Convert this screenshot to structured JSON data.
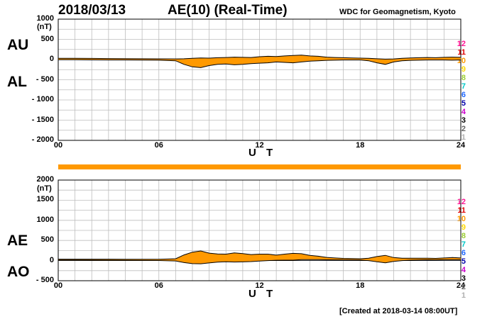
{
  "header": {
    "date": "2018/03/13",
    "title": "AE(10) (Real-Time)",
    "source": "WDC for Geomagnetism, Kyoto"
  },
  "footer": {
    "created": "[Created at 2018-03-14 08:00UT]"
  },
  "legend": {
    "items": [
      {
        "label": "12",
        "color": "#ff1493"
      },
      {
        "label": "11",
        "color": "#e00000"
      },
      {
        "label": "10",
        "color": "#ff9900"
      },
      {
        "label": "9",
        "color": "#ffd700"
      },
      {
        "label": "8",
        "color": "#9acd32"
      },
      {
        "label": "7",
        "color": "#00c8c8"
      },
      {
        "label": "6",
        "color": "#1e66ff"
      },
      {
        "label": "5",
        "color": "#0000aa"
      },
      {
        "label": "4",
        "color": "#cc00cc"
      },
      {
        "label": "3",
        "color": "#000000"
      },
      {
        "label": "2",
        "color": "#666666"
      },
      {
        "label": "1",
        "color": "#b0b0b0"
      }
    ]
  },
  "chart_data": [
    {
      "type": "area",
      "panel": "AU/AL",
      "left_labels": [
        "AU",
        "AL"
      ],
      "xlabel": "U T",
      "ylabel": "(nT)",
      "xlim": [
        0,
        24
      ],
      "xticks": [
        "00",
        "06",
        "12",
        "18",
        "24"
      ],
      "ylim": [
        -2000,
        1000
      ],
      "yticks": [
        "1000",
        "500",
        "0",
        "- 500",
        "- 1000",
        "- 1500",
        "- 2000"
      ],
      "grid": true,
      "fill_color": "#ff9900",
      "series": [
        {
          "name": "AU",
          "x": [
            0,
            1,
            2,
            3,
            4,
            5,
            6,
            7,
            7.5,
            8,
            8.5,
            9,
            9.5,
            10,
            10.5,
            11,
            11.5,
            12,
            12.5,
            13,
            13.5,
            14,
            14.5,
            15,
            15.5,
            16,
            16.5,
            17,
            17.5,
            18,
            18.5,
            19,
            19.5,
            20,
            20.5,
            21,
            21.5,
            22,
            22.5,
            23,
            23.5,
            24
          ],
          "y": [
            30,
            30,
            28,
            25,
            22,
            20,
            18,
            15,
            20,
            30,
            40,
            35,
            45,
            50,
            60,
            55,
            50,
            70,
            80,
            75,
            90,
            100,
            110,
            90,
            80,
            60,
            50,
            45,
            40,
            35,
            30,
            20,
            10,
            15,
            30,
            40,
            45,
            50,
            45,
            55,
            60,
            55
          ]
        },
        {
          "name": "AL",
          "x": [
            0,
            1,
            2,
            3,
            4,
            5,
            6,
            7,
            7.5,
            8,
            8.5,
            9,
            9.5,
            10,
            10.5,
            11,
            11.5,
            12,
            12.5,
            13,
            13.5,
            14,
            14.5,
            15,
            15.5,
            16,
            16.5,
            17,
            17.5,
            18,
            18.5,
            19,
            19.5,
            20,
            20.5,
            21,
            21.5,
            22,
            22.5,
            23,
            23.5,
            24
          ],
          "y": [
            -5,
            -5,
            -8,
            -10,
            -10,
            -12,
            -15,
            -30,
            -120,
            -180,
            -200,
            -150,
            -120,
            -110,
            -130,
            -120,
            -100,
            -90,
            -80,
            -60,
            -70,
            -80,
            -60,
            -40,
            -30,
            -20,
            -15,
            -10,
            -10,
            -10,
            -30,
            -80,
            -120,
            -60,
            -30,
            -20,
            -15,
            -10,
            -10,
            -10,
            -15,
            -10
          ]
        }
      ]
    },
    {
      "type": "area",
      "panel": "AE/AO",
      "left_labels": [
        "AE",
        "AO"
      ],
      "xlabel": "U T",
      "ylabel": "(nT)",
      "xlim": [
        0,
        24
      ],
      "xticks": [
        "00",
        "06",
        "12",
        "18",
        "24"
      ],
      "ylim": [
        -500,
        2000
      ],
      "yticks": [
        "2000",
        "1500",
        "1000",
        "500",
        "0",
        "- 500"
      ],
      "grid": true,
      "fill_color": "#ff9900",
      "series": [
        {
          "name": "AE",
          "x": [
            0,
            1,
            2,
            3,
            4,
            5,
            6,
            7,
            7.5,
            8,
            8.5,
            9,
            9.5,
            10,
            10.5,
            11,
            11.5,
            12,
            12.5,
            13,
            13.5,
            14,
            14.5,
            15,
            15.5,
            16,
            16.5,
            17,
            17.5,
            18,
            18.5,
            19,
            19.5,
            20,
            20.5,
            21,
            21.5,
            22,
            22.5,
            23,
            23.5,
            24
          ],
          "y": [
            35,
            35,
            36,
            35,
            32,
            32,
            33,
            45,
            140,
            210,
            240,
            185,
            165,
            160,
            190,
            175,
            150,
            160,
            160,
            135,
            160,
            180,
            170,
            130,
            110,
            80,
            65,
            55,
            50,
            45,
            60,
            100,
            130,
            75,
            60,
            60,
            60,
            60,
            55,
            65,
            75,
            65
          ]
        },
        {
          "name": "AO",
          "x": [
            0,
            1,
            2,
            3,
            4,
            5,
            6,
            7,
            7.5,
            8,
            8.5,
            9,
            9.5,
            10,
            10.5,
            11,
            11.5,
            12,
            12.5,
            13,
            13.5,
            14,
            14.5,
            15,
            15.5,
            16,
            16.5,
            17,
            17.5,
            18,
            18.5,
            19,
            19.5,
            20,
            20.5,
            21,
            21.5,
            22,
            22.5,
            23,
            23.5,
            24
          ],
          "y": [
            12,
            12,
            10,
            8,
            6,
            4,
            2,
            -8,
            -50,
            -75,
            -80,
            -58,
            -38,
            -30,
            -35,
            -32,
            -25,
            -10,
            0,
            8,
            10,
            10,
            25,
            25,
            25,
            20,
            18,
            18,
            15,
            12,
            0,
            -30,
            -55,
            -22,
            0,
            10,
            15,
            20,
            18,
            22,
            22,
            22
          ]
        }
      ]
    }
  ]
}
